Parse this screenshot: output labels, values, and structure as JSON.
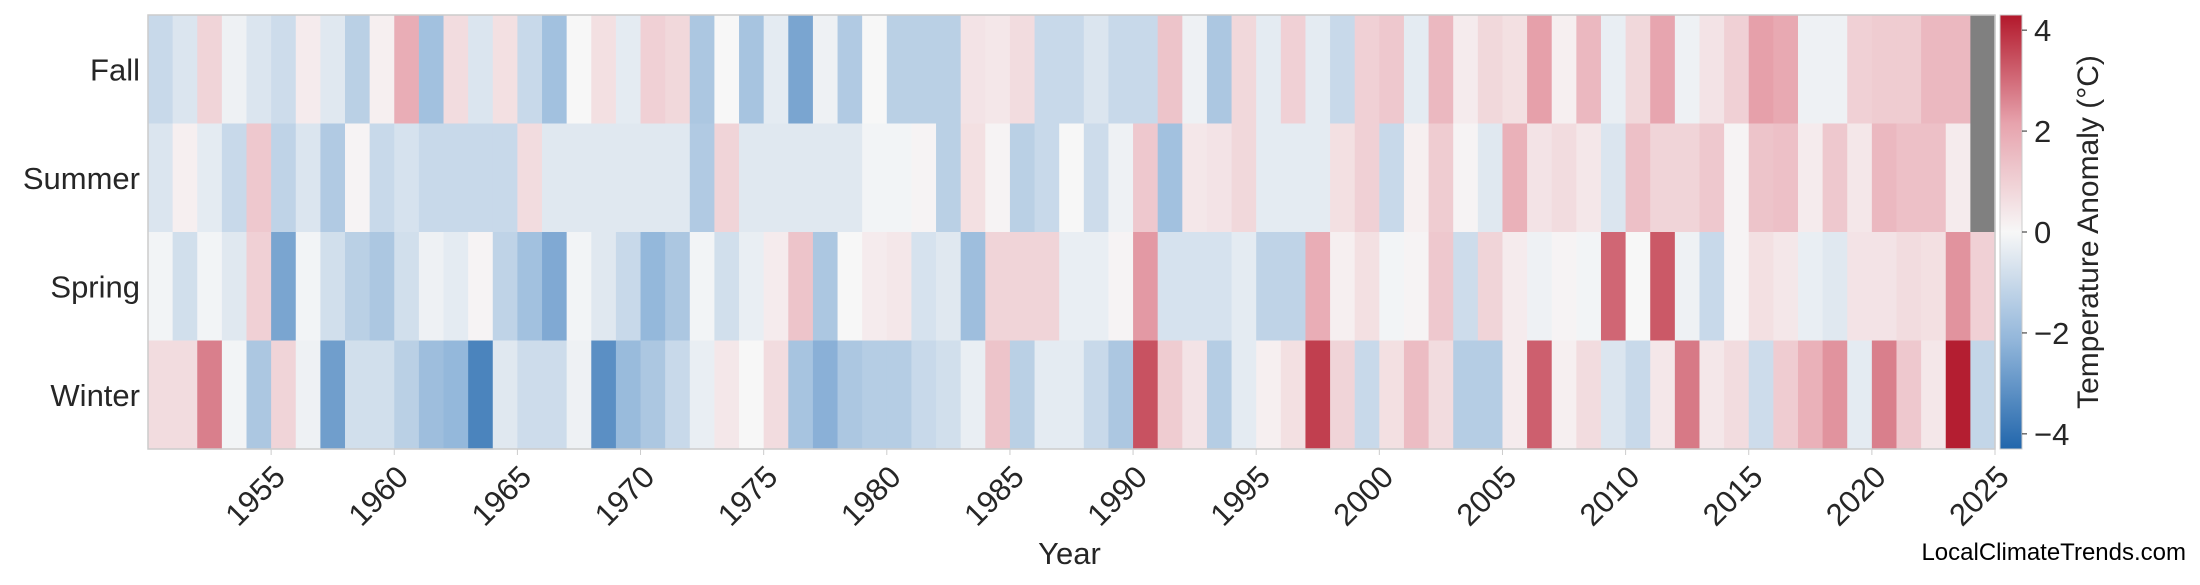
{
  "chart_data": {
    "type": "heatmap",
    "xlabel": "Year",
    "colorbar_label": "Temperature Anomaly (°C)",
    "colorbar_range": [
      -4.3,
      4.3
    ],
    "colorbar_ticks": [
      -4,
      -2,
      0,
      2,
      4
    ],
    "colorbar_tick_labels": [
      "−4",
      "−2",
      "0",
      "2",
      "4"
    ],
    "x_start_year": 1950,
    "x_ticks": [
      1955,
      1960,
      1965,
      1970,
      1975,
      1980,
      1985,
      1990,
      1995,
      2000,
      2005,
      2010,
      2015,
      2020,
      2025
    ],
    "x_tick_labels": [
      "1955",
      "1960",
      "1965",
      "1970",
      "1975",
      "1980",
      "1985",
      "1990",
      "1995",
      "2000",
      "2005",
      "2010",
      "2015",
      "2020",
      "2025"
    ],
    "rows": [
      "Fall",
      "Summer",
      "Spring",
      "Winter"
    ],
    "missing_color": "#808080",
    "colors": {
      "low": "#2166ac",
      "low_mid": "#92b6da",
      "mid": "#f7f7f7",
      "high_mid": "#e7a3ad",
      "high": "#b2182b"
    },
    "values": {
      "Fall": [
        -1.0,
        -0.6,
        0.9,
        -0.2,
        -0.6,
        -0.9,
        0.3,
        -0.5,
        -1.3,
        0.2,
        1.9,
        -1.8,
        0.7,
        -0.6,
        0.6,
        -1.0,
        -1.8,
        0.0,
        0.6,
        -0.4,
        1.0,
        0.8,
        -1.6,
        0.0,
        -1.7,
        -0.4,
        -2.6,
        -0.2,
        -1.5,
        0.0,
        -1.3,
        -1.3,
        -1.3,
        0.5,
        0.4,
        0.7,
        -1.0,
        -1.0,
        -0.6,
        -1.0,
        -1.0,
        1.3,
        -0.2,
        -1.6,
        0.8,
        -0.4,
        1.0,
        -0.4,
        -1.0,
        1.0,
        1.2,
        -0.4,
        1.6,
        0.3,
        0.8,
        0.6,
        2.2,
        0.2,
        1.6,
        -0.3,
        0.8,
        2.1,
        -0.2,
        0.5,
        1.0,
        2.2,
        2.0,
        -0.2,
        -0.2,
        1.0,
        1.1,
        1.1,
        1.6,
        1.6,
        null
      ],
      "Summer": [
        -0.6,
        0.2,
        -0.4,
        -1.0,
        1.2,
        -1.2,
        -0.6,
        -1.5,
        0.1,
        -1.0,
        -0.7,
        -1.0,
        -1.0,
        -1.0,
        -1.0,
        0.7,
        -0.5,
        -0.5,
        -0.5,
        -0.5,
        -0.5,
        -0.5,
        -1.5,
        0.9,
        -0.5,
        -0.5,
        -0.5,
        -0.5,
        -0.5,
        -0.1,
        -0.1,
        0.1,
        -1.3,
        0.6,
        0.1,
        -1.3,
        -1.0,
        0.0,
        -0.9,
        -0.2,
        1.2,
        -1.8,
        0.4,
        0.5,
        0.8,
        -0.4,
        -0.4,
        -0.4,
        0.6,
        1.0,
        -1.0,
        0.2,
        1.1,
        0.1,
        -0.5,
        1.8,
        0.5,
        0.7,
        0.4,
        -0.6,
        1.4,
        0.9,
        0.9,
        1.2,
        0.1,
        1.3,
        1.4,
        0.3,
        1.2,
        0.4,
        1.6,
        1.4,
        1.4,
        0.3,
        null
      ],
      "Spring": [
        -0.1,
        -0.8,
        -0.1,
        -0.5,
        1.0,
        -2.6,
        -0.1,
        -0.8,
        -1.3,
        -1.6,
        -0.8,
        -0.2,
        -0.4,
        0.1,
        -1.2,
        -1.8,
        -2.5,
        -0.1,
        -0.5,
        -1.0,
        -2.1,
        -1.6,
        -0.1,
        -0.8,
        -0.3,
        0.3,
        1.3,
        -1.6,
        0.0,
        0.3,
        0.4,
        -0.7,
        -0.5,
        -1.9,
        0.9,
        0.9,
        0.9,
        -0.3,
        -0.3,
        0.1,
        2.3,
        -0.7,
        -0.7,
        -0.7,
        -0.4,
        -1.2,
        -1.2,
        1.9,
        0.2,
        0.6,
        -0.1,
        0.1,
        1.2,
        -0.9,
        0.9,
        0.3,
        -0.2,
        0.1,
        -0.1,
        3.1,
        0.0,
        3.3,
        -0.2,
        -1.0,
        0.1,
        0.6,
        0.4,
        -0.3,
        -0.5,
        0.5,
        0.5,
        0.7,
        0.6,
        2.4,
        1.0
      ],
      "Winter": [
        0.7,
        0.7,
        2.7,
        -0.1,
        -1.6,
        0.9,
        -0.2,
        -2.8,
        -0.8,
        -0.8,
        -1.3,
        -1.9,
        -2.1,
        -3.5,
        -0.5,
        -0.9,
        -0.9,
        -0.2,
        -3.2,
        -2.0,
        -1.6,
        -1.0,
        -0.3,
        0.4,
        0.0,
        0.7,
        -1.7,
        -2.3,
        -1.6,
        -1.4,
        -1.4,
        -1.0,
        -0.8,
        -0.3,
        1.3,
        -1.3,
        -0.4,
        -0.4,
        -1.0,
        -1.6,
        3.4,
        1.1,
        0.5,
        -1.4,
        -0.4,
        0.2,
        0.6,
        3.7,
        0.9,
        -1.0,
        0.6,
        1.5,
        0.7,
        -1.4,
        -1.4,
        0.3,
        3.2,
        0.2,
        0.7,
        -0.6,
        -1.0,
        0.4,
        2.8,
        0.4,
        0.7,
        -0.9,
        1.1,
        1.8,
        2.4,
        -0.4,
        2.7,
        1.2,
        0.4,
        4.2,
        -1.1
      ]
    }
  },
  "footer": {
    "credit": "LocalClimateTrends.com"
  }
}
